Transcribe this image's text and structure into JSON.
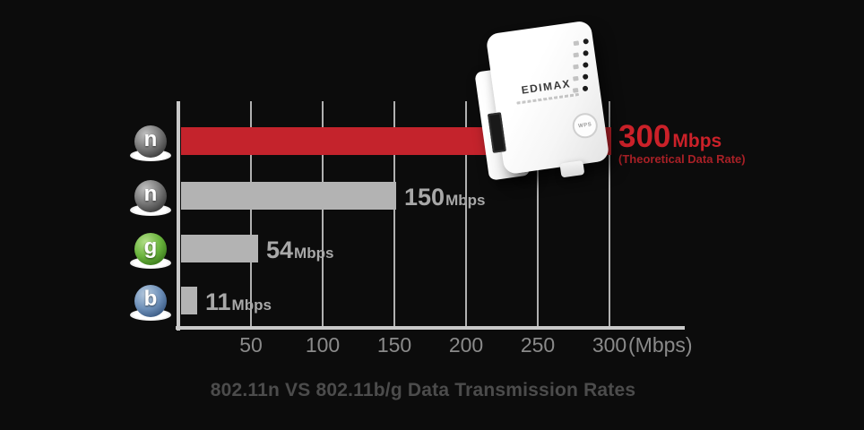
{
  "colors": {
    "background": "#0c0c0c",
    "bar_red": "#c4232c",
    "bar_gray": "#b3b3b3",
    "value_gray": "#a8a8a8",
    "value_red": "#cb2129",
    "annotation_red": "#a82026",
    "tick_gray": "#8a8a8a",
    "axis_gray": "#c9c9c9",
    "grid_gray": "#cfcfcf",
    "title_gray": "#4c4c4c"
  },
  "chart_data": {
    "type": "bar",
    "orientation": "horizontal",
    "title": "802.11n VS 802.11b/g Data Transmission Rates",
    "x_axis": {
      "ticks": [
        50,
        100,
        150,
        200,
        250,
        300
      ],
      "unit_label": "(Mbps)",
      "min": 0,
      "max": 300,
      "grid": true
    },
    "legend_position": "none",
    "rows": [
      {
        "standard": "802.11n",
        "icon_letter": "n",
        "icon_style": "gray",
        "value": 300,
        "value_label": "300",
        "unit": "Mbps",
        "annotation": "(Theoretical Data Rate)",
        "highlight": true
      },
      {
        "standard": "802.11n",
        "icon_letter": "n",
        "icon_style": "gray",
        "value": 150,
        "value_label": "150",
        "unit": "Mbps",
        "annotation": "",
        "highlight": false
      },
      {
        "standard": "802.11g",
        "icon_letter": "g",
        "icon_style": "green",
        "value": 54,
        "value_label": "54",
        "unit": "Mbps",
        "annotation": "",
        "highlight": false
      },
      {
        "standard": "802.11b",
        "icon_letter": "b",
        "icon_style": "blue",
        "value": 11,
        "value_label": "11",
        "unit": "Mbps",
        "annotation": "",
        "highlight": false
      }
    ]
  },
  "device": {
    "brand": "EDIMAX",
    "wps_label": "WPS",
    "led_count": 5
  }
}
